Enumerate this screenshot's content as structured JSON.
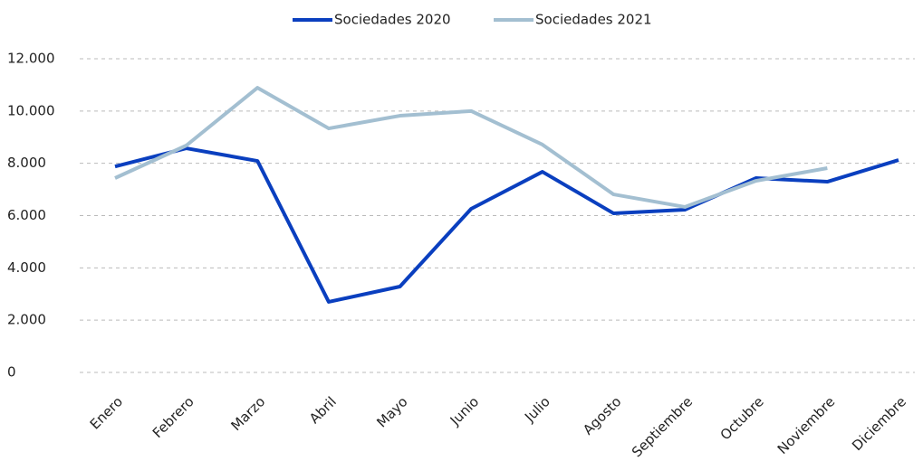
{
  "chart_data": {
    "type": "line",
    "categories": [
      "Enero",
      "Febrero",
      "Marzo",
      "Abril",
      "Mayo",
      "Junio",
      "Julio",
      "Agosto",
      "Septiembre",
      "Octubre",
      "Noviembre",
      "Diciembre"
    ],
    "series": [
      {
        "name": "Sociedades 2020",
        "color": "#0a3fbf",
        "values": [
          7880,
          8575,
          8090,
          2700,
          3285,
          6260,
          7675,
          6085,
          6225,
          7435,
          7295,
          8125
        ]
      },
      {
        "name": "Sociedades 2021",
        "color": "#a3bfd1",
        "values": [
          7435,
          8680,
          10890,
          9335,
          9820,
          10000,
          8715,
          6810,
          6330,
          7330,
          7815,
          null
        ]
      }
    ],
    "ylim": [
      0,
      12000
    ],
    "yticks": [
      0,
      {
        "value": 2000,
        "label": "2.000"
      },
      {
        "value": 4000,
        "label": "4.000"
      },
      {
        "value": 6000,
        "label": "6.000"
      },
      {
        "value": 8000,
        "label": "8.000"
      },
      {
        "value": 10000,
        "label": "10.000"
      },
      {
        "value": 12000,
        "label": "12.000"
      }
    ],
    "grid": true,
    "legend": "top"
  }
}
